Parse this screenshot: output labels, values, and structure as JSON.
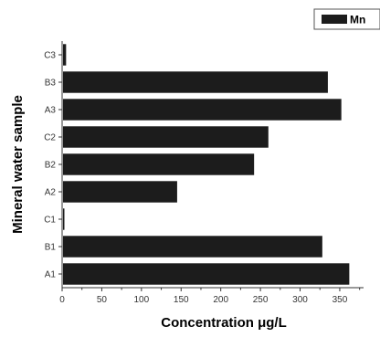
{
  "chart_data": {
    "type": "bar",
    "orientation": "horizontal",
    "categories": [
      "A1",
      "B1",
      "C1",
      "A2",
      "B2",
      "C2",
      "A3",
      "B3",
      "C3"
    ],
    "series": [
      {
        "name": "Mn",
        "values": [
          362,
          328,
          1,
          145,
          242,
          260,
          352,
          335,
          5
        ],
        "color": "#1c1c1c"
      }
    ],
    "xlabel": "Concentration μg/L",
    "ylabel": "Mineral water sample",
    "xlim": [
      0,
      380
    ],
    "xticks": [
      0,
      50,
      100,
      150,
      200,
      250,
      300,
      350
    ],
    "grid": false,
    "legend_position": "top-right"
  }
}
